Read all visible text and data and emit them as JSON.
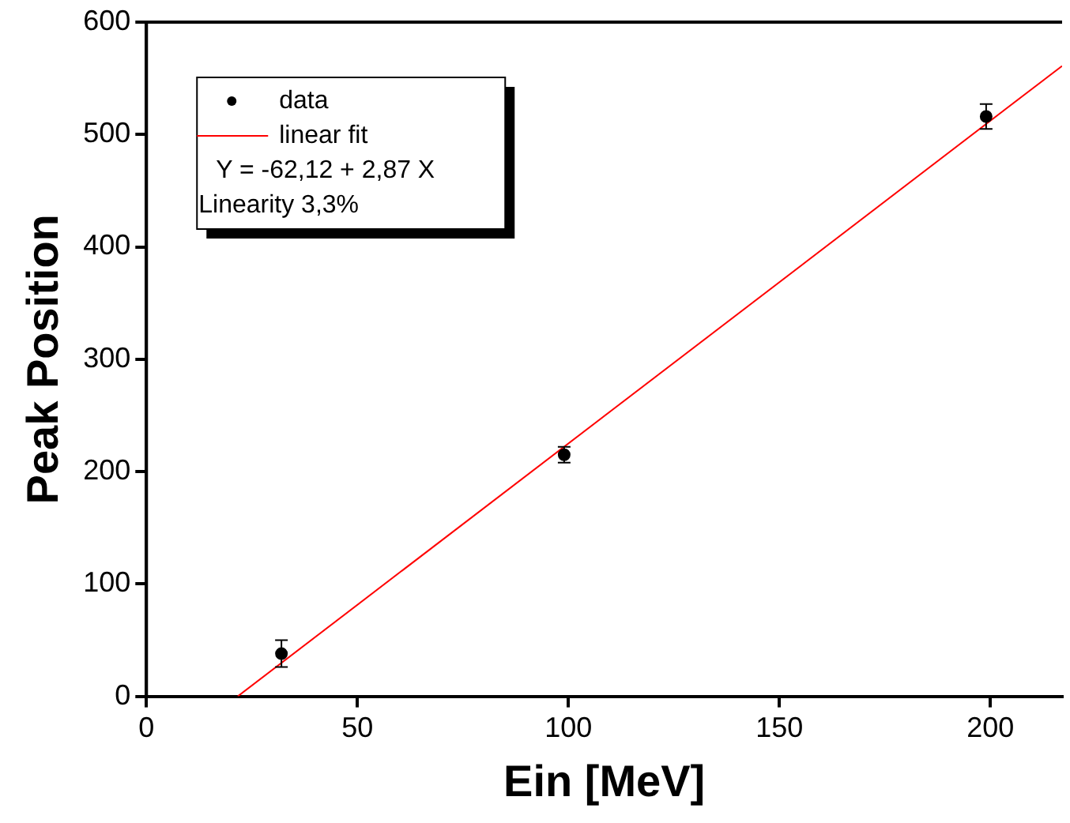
{
  "chart_data": {
    "type": "scatter",
    "xlabel": "Ein [MeV]",
    "ylabel": "Peak Position",
    "xlim": [
      0,
      217
    ],
    "ylim": [
      0,
      600
    ],
    "xticks": [
      0,
      50,
      100,
      150,
      200
    ],
    "yticks": [
      0,
      100,
      200,
      300,
      400,
      500,
      600
    ],
    "grid": false,
    "legend": "top left",
    "marker": "circle",
    "annotations": [
      "Y = -62,12 + 2,87 X",
      "Linearity 3,3%"
    ],
    "series": [
      {
        "name": "data",
        "color": "#000000",
        "x": [
          32,
          99,
          199
        ],
        "values": [
          38,
          215,
          516
        ],
        "errors": [
          12,
          7,
          11
        ]
      },
      {
        "name": "linear fit",
        "type": "line",
        "color": "#ff0000",
        "x": [
          21.65,
          217
        ],
        "values": [
          0,
          561
        ],
        "line_style": "solid",
        "marker": "none"
      }
    ]
  }
}
